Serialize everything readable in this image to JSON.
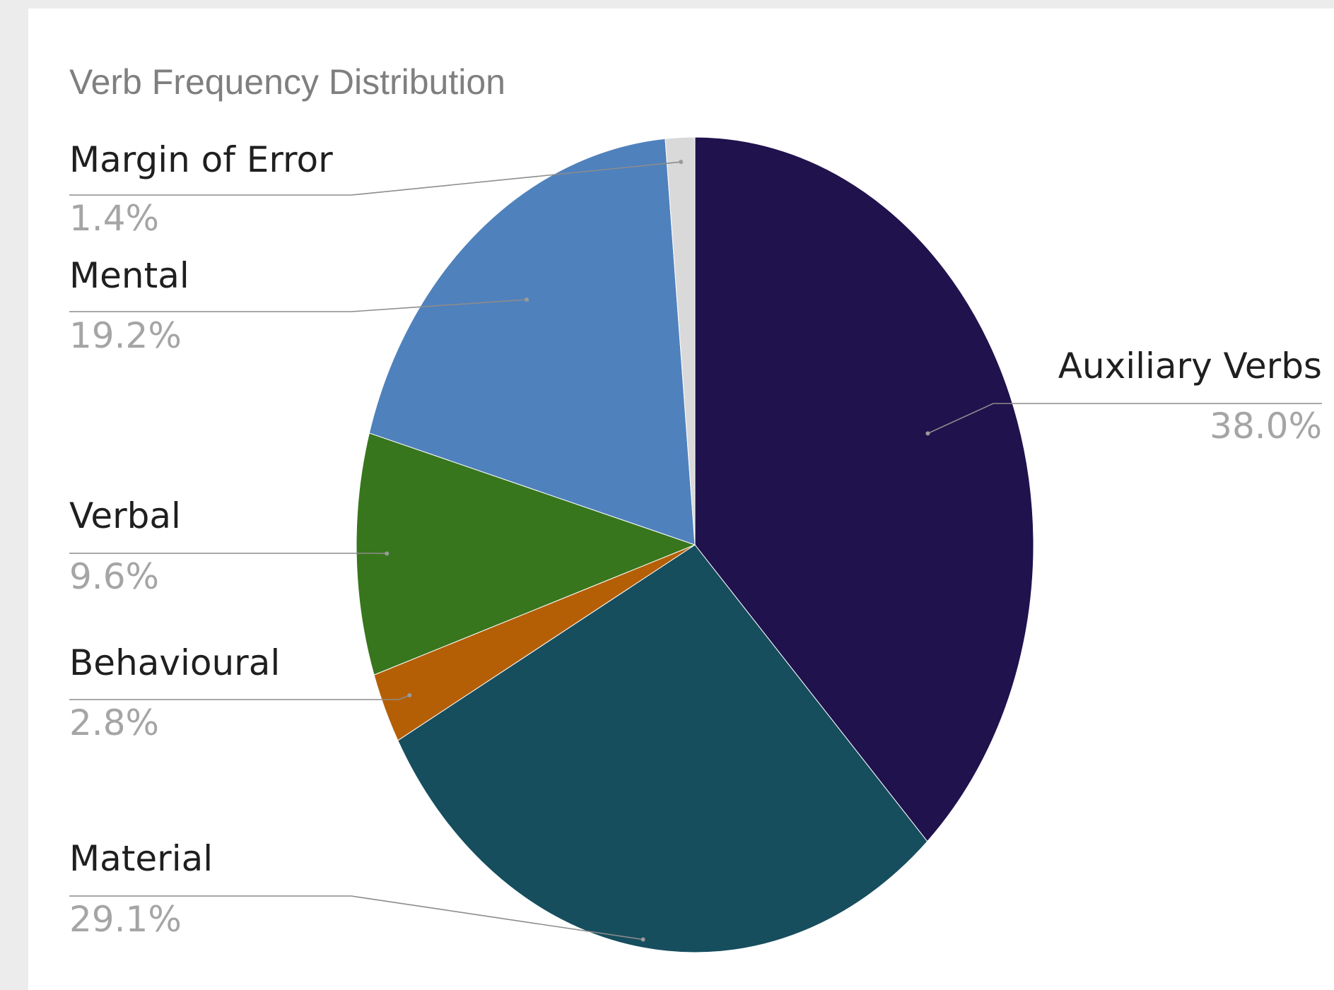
{
  "chart_data": {
    "type": "pie",
    "title": "Verb Frequency Distribution",
    "slices": [
      {
        "label": "Auxiliary Verbs",
        "value": 38.0,
        "value_label": "38.0%",
        "color": "#20124d"
      },
      {
        "label": "Material",
        "value": 29.1,
        "value_label": "29.1%",
        "color": "#164e5e"
      },
      {
        "label": "Behavioural",
        "value": 2.8,
        "value_label": "2.8%",
        "color": "#b45f06"
      },
      {
        "label": "Verbal",
        "value": 9.6,
        "value_label": "9.6%",
        "color": "#38761d"
      },
      {
        "label": "Mental",
        "value": 19.2,
        "value_label": "19.2%",
        "color": "#4f81bd"
      },
      {
        "label": "Margin of Error",
        "value": 1.4,
        "value_label": "1.4%",
        "color": "#d9d9d9"
      }
    ],
    "start_angle": "12 o'clock",
    "direction": "clockwise",
    "legend": "none",
    "label_position": "outside with leader lines"
  }
}
